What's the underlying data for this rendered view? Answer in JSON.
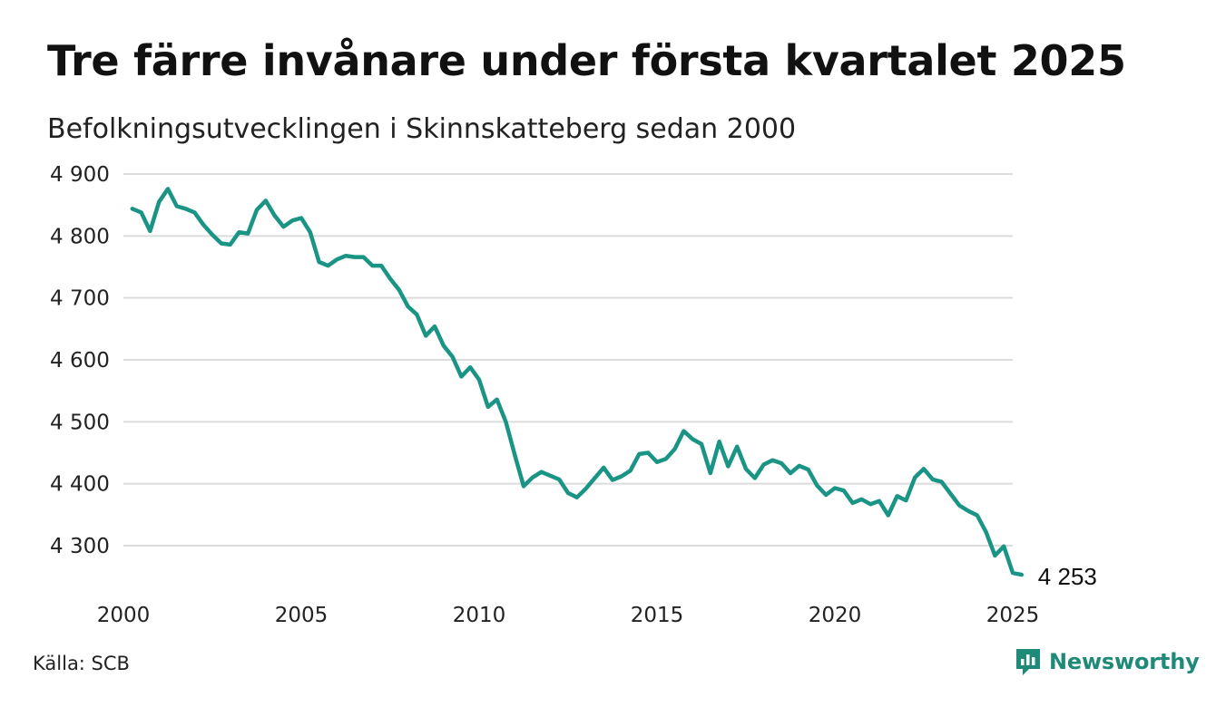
{
  "title": "Tre färre invånare under första kvartalet 2025",
  "subtitle": "Befolkningsutvecklingen i Skinnskatteberg sedan 2000",
  "source": "Källa: SCB",
  "brand": {
    "name": "Newsworthy",
    "icon": "newsworthy-logo-icon",
    "color": "#1f8a78"
  },
  "chart_data": {
    "type": "line",
    "color": "#1a9485",
    "xlim": [
      2000,
      2025
    ],
    "ylim": [
      4240,
      4900
    ],
    "grid": true,
    "xticks": [
      {
        "value": 2000,
        "label": "2000"
      },
      {
        "value": 2005,
        "label": "2005"
      },
      {
        "value": 2010,
        "label": "2010"
      },
      {
        "value": 2015,
        "label": "2015"
      },
      {
        "value": 2020,
        "label": "2020"
      },
      {
        "value": 2025,
        "label": "2025"
      }
    ],
    "yticks": [
      {
        "value": 4300,
        "label": "4 300"
      },
      {
        "value": 4400,
        "label": "4 400"
      },
      {
        "value": 4500,
        "label": "4 500"
      },
      {
        "value": 4600,
        "label": "4 600"
      },
      {
        "value": 4700,
        "label": "4 700"
      },
      {
        "value": 4800,
        "label": "4 800"
      },
      {
        "value": 4900,
        "label": "4 900"
      }
    ],
    "end_label": "4 253",
    "series": [
      {
        "points": [
          [
            2000.25,
            4844
          ],
          [
            2000.5,
            4838
          ],
          [
            2000.75,
            4808
          ],
          [
            2001.0,
            4855
          ],
          [
            2001.25,
            4876
          ],
          [
            2001.5,
            4848
          ],
          [
            2001.75,
            4844
          ],
          [
            2002.0,
            4838
          ],
          [
            2002.25,
            4818
          ],
          [
            2002.5,
            4802
          ],
          [
            2002.75,
            4788
          ],
          [
            2003.0,
            4786
          ],
          [
            2003.25,
            4806
          ],
          [
            2003.5,
            4804
          ],
          [
            2003.75,
            4842
          ],
          [
            2004.0,
            4857
          ],
          [
            2004.25,
            4833
          ],
          [
            2004.5,
            4815
          ],
          [
            2004.75,
            4825
          ],
          [
            2005.0,
            4829
          ],
          [
            2005.25,
            4806
          ],
          [
            2005.5,
            4758
          ],
          [
            2005.75,
            4752
          ],
          [
            2006.0,
            4762
          ],
          [
            2006.25,
            4768
          ],
          [
            2006.5,
            4766
          ],
          [
            2006.75,
            4766
          ],
          [
            2007.0,
            4752
          ],
          [
            2007.25,
            4752
          ],
          [
            2007.5,
            4731
          ],
          [
            2007.75,
            4713
          ],
          [
            2008.0,
            4686
          ],
          [
            2008.25,
            4673
          ],
          [
            2008.5,
            4639
          ],
          [
            2008.75,
            4654
          ],
          [
            2009.0,
            4623
          ],
          [
            2009.25,
            4605
          ],
          [
            2009.5,
            4573
          ],
          [
            2009.75,
            4588
          ],
          [
            2010.0,
            4568
          ],
          [
            2010.25,
            4524
          ],
          [
            2010.5,
            4536
          ],
          [
            2010.75,
            4500
          ],
          [
            2011.0,
            4447
          ],
          [
            2011.25,
            4396
          ],
          [
            2011.5,
            4410
          ],
          [
            2011.75,
            4419
          ],
          [
            2012.0,
            4413
          ],
          [
            2012.25,
            4407
          ],
          [
            2012.5,
            4385
          ],
          [
            2012.75,
            4378
          ],
          [
            2013.0,
            4392
          ],
          [
            2013.25,
            4409
          ],
          [
            2013.5,
            4426
          ],
          [
            2013.75,
            4406
          ],
          [
            2014.0,
            4412
          ],
          [
            2014.25,
            4421
          ],
          [
            2014.5,
            4448
          ],
          [
            2014.75,
            4450
          ],
          [
            2015.0,
            4435
          ],
          [
            2015.25,
            4440
          ],
          [
            2015.5,
            4456
          ],
          [
            2015.75,
            4485
          ],
          [
            2016.0,
            4472
          ],
          [
            2016.25,
            4464
          ],
          [
            2016.5,
            4417
          ],
          [
            2016.75,
            4468
          ],
          [
            2017.0,
            4428
          ],
          [
            2017.25,
            4460
          ],
          [
            2017.5,
            4424
          ],
          [
            2017.75,
            4409
          ],
          [
            2018.0,
            4431
          ],
          [
            2018.25,
            4438
          ],
          [
            2018.5,
            4433
          ],
          [
            2018.75,
            4417
          ],
          [
            2019.0,
            4429
          ],
          [
            2019.25,
            4423
          ],
          [
            2019.5,
            4397
          ],
          [
            2019.75,
            4382
          ],
          [
            2020.0,
            4393
          ],
          [
            2020.25,
            4389
          ],
          [
            2020.5,
            4369
          ],
          [
            2020.75,
            4375
          ],
          [
            2021.0,
            4367
          ],
          [
            2021.25,
            4372
          ],
          [
            2021.5,
            4349
          ],
          [
            2021.75,
            4380
          ],
          [
            2022.0,
            4373
          ],
          [
            2022.25,
            4410
          ],
          [
            2022.5,
            4424
          ],
          [
            2022.75,
            4407
          ],
          [
            2023.0,
            4403
          ],
          [
            2023.25,
            4384
          ],
          [
            2023.5,
            4365
          ],
          [
            2023.75,
            4356
          ],
          [
            2024.0,
            4349
          ],
          [
            2024.25,
            4322
          ],
          [
            2024.5,
            4284
          ],
          [
            2024.75,
            4299
          ],
          [
            2025.0,
            4256
          ],
          [
            2025.25,
            4253
          ]
        ]
      }
    ]
  }
}
